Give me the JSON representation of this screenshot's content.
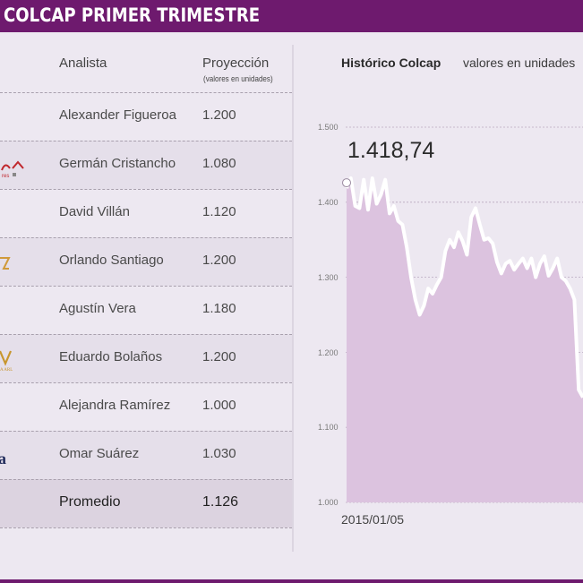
{
  "header": {
    "title": "COLCAP PRIMER TRIMESTRE"
  },
  "table": {
    "col_analyst": "Analista",
    "col_projection": "Proyección",
    "col_projection_sub": "(valores en unidades)",
    "rows": [
      {
        "analyst": "Alexander Figueroa",
        "projection": "1.200",
        "logo": ""
      },
      {
        "analyst": "Germán Cristancho",
        "projection": "1.080",
        "logo": "red-logo"
      },
      {
        "analyst": "David Villán",
        "projection": "1.120",
        "logo": ""
      },
      {
        "analyst": "Orlando Santiago",
        "projection": "1.200",
        "logo": "gold-logo"
      },
      {
        "analyst": "Agustín Vera",
        "projection": "1.180",
        "logo": ""
      },
      {
        "analyst": "Eduardo Bolaños",
        "projection": "1.200",
        "logo": "gold-logo"
      },
      {
        "analyst": "Alejandra Ramírez",
        "projection": "1.000",
        "logo": ""
      },
      {
        "analyst": "Omar Suárez",
        "projection": "1.030",
        "logo": "navy-logo"
      }
    ],
    "average": {
      "label": "Promedio",
      "value": "1.126"
    }
  },
  "chart": {
    "title": "Histórico Colcap",
    "subtitle": "valores en unidades",
    "highlight_value": "1.418,74",
    "x_start_label": "2015/01/05",
    "y_ticks": [
      "1.500",
      "1.400",
      "1.300",
      "1.200",
      "1.100",
      "1.000"
    ]
  },
  "colors": {
    "brand_purple": "#6e1a6e",
    "area_fill": "#dcc3df",
    "line": "#ffffff",
    "background": "#ede8f1"
  },
  "chart_data": {
    "type": "area",
    "title": "Histórico Colcap",
    "subtitle": "valores en unidades",
    "xlabel": "",
    "ylabel": "",
    "x_start": "2015/01/05",
    "ylim": [
      1000,
      1500
    ],
    "y_ticks": [
      1000,
      1100,
      1200,
      1300,
      1400,
      1500
    ],
    "grid": true,
    "annotation": {
      "label": "1.418,74",
      "value": 1418.74,
      "position": "first point"
    },
    "series": [
      {
        "name": "Colcap",
        "values": [
          1418.74,
          1432,
          1395,
          1392,
          1430,
          1390,
          1432,
          1398,
          1410,
          1430,
          1385,
          1395,
          1375,
          1370,
          1340,
          1300,
          1270,
          1250,
          1262,
          1285,
          1278,
          1290,
          1300,
          1335,
          1350,
          1340,
          1360,
          1348,
          1330,
          1380,
          1392,
          1370,
          1350,
          1352,
          1345,
          1320,
          1305,
          1318,
          1322,
          1310,
          1318,
          1325,
          1312,
          1325,
          1300,
          1318,
          1328,
          1302,
          1312,
          1325,
          1300,
          1295,
          1285,
          1270,
          1150,
          1140
        ]
      }
    ]
  }
}
